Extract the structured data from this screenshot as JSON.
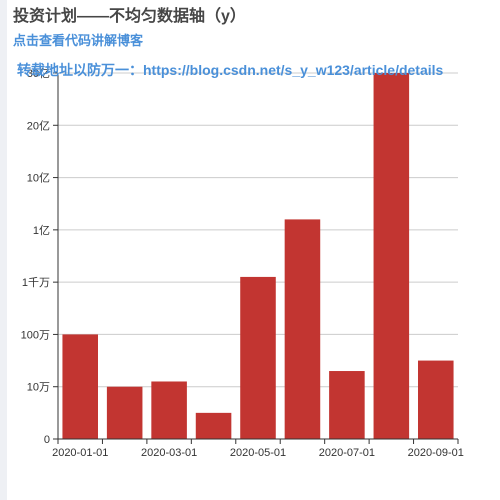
{
  "header": {
    "title": "投资计划——不均匀数据轴（y）",
    "subtitle_link": "点击查看代码讲解博客",
    "note": "转载地址以防万一：https://blog.csdn.net/s_y_w123/article/details"
  },
  "colors": {
    "bar": "#c23531",
    "axis": "#333333",
    "grid": "#cccccc",
    "link": "#4a90d9"
  },
  "chart_data": {
    "type": "bar",
    "categories": [
      "2020-01-01",
      "2020-02-01",
      "2020-03-01",
      "2020-04-01",
      "2020-05-01",
      "2020-06-01",
      "2020-07-01",
      "2020-08-01",
      "2020-09-01"
    ],
    "x_tick_labels": [
      "2020-01-01",
      "2020-03-01",
      "2020-05-01",
      "2020-07-01",
      "2020-09-01"
    ],
    "y_tick_labels": [
      "0",
      "10万",
      "100万",
      "1千万",
      "1亿",
      "10亿",
      "20亿",
      "30亿"
    ],
    "values_axis_level": [
      2.0,
      1.0,
      1.1,
      0.5,
      3.1,
      4.2,
      1.3,
      7.0,
      1.5
    ],
    "ylim": [
      0,
      7
    ],
    "grid": true,
    "y_scale": "non-uniform (0, 10万, 100万, 1千万, 1亿, 10亿, 20亿, 30亿)"
  }
}
